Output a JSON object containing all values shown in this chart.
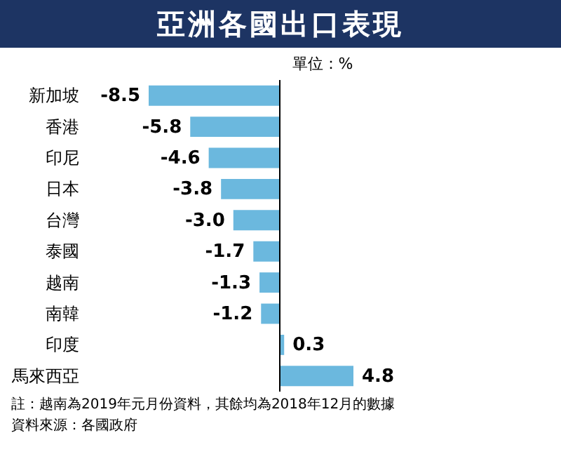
{
  "chart_data": {
    "type": "bar",
    "orientation": "horizontal",
    "title": "亞洲各國出口表現",
    "subtitle": "單位：%",
    "categories": [
      "新加坡",
      "香港",
      "印尼",
      "日本",
      "台灣",
      "泰國",
      "越南",
      "南韓",
      "印度",
      "馬來西亞"
    ],
    "values": [
      -8.5,
      -5.8,
      -4.6,
      -3.8,
      -3.0,
      -1.7,
      -1.3,
      -1.2,
      0.3,
      4.8
    ],
    "color": "#6bb8de",
    "value_labels": [
      "-8.5",
      "-5.8",
      "-4.6",
      "-3.8",
      "-3.0",
      "-1.7",
      "-1.3",
      "-1.2",
      "0.3",
      "4.8"
    ],
    "ref_lines": [
      {
        "axis": "x",
        "value": 0,
        "color": "#000000"
      }
    ],
    "annotations": [
      "註：越南為2019年元月份資料，其餘均為2018年12月的數據",
      "資料來源：各國政府"
    ]
  }
}
